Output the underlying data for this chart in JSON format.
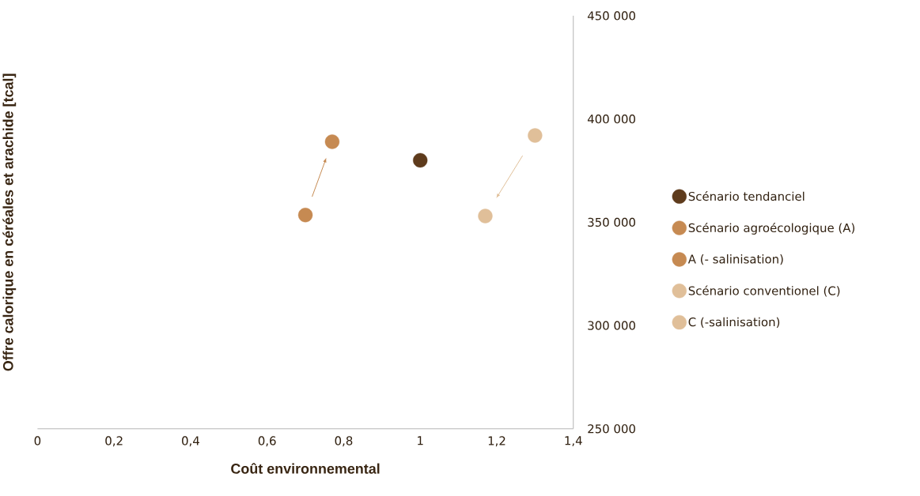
{
  "chart_data": {
    "type": "scatter",
    "xlabel": "Coût environnemental",
    "ylabel": "Offre calorique en céréales et arachide [tcal]",
    "xlim": [
      0,
      1.4
    ],
    "xticks": [
      0,
      {
        "value": 0.2,
        "label": "0,2"
      },
      {
        "value": 0.4,
        "label": "0,4"
      },
      {
        "value": 0.6,
        "label": "0,6"
      },
      {
        "value": 0.8,
        "label": "0,8"
      },
      1,
      {
        "value": 1.2,
        "label": "1,2"
      },
      {
        "value": 1.4,
        "label": "1,4"
      }
    ],
    "ylim": [
      250000,
      450000
    ],
    "yticks": [
      {
        "value": 250000,
        "label": "250 000"
      },
      {
        "value": 300000,
        "label": "300 000"
      },
      {
        "value": 350000,
        "label": "350 000"
      },
      {
        "value": 400000,
        "label": "400 000"
      },
      {
        "value": 450000,
        "label": "450 000"
      }
    ],
    "marker": "circle",
    "legend": "right",
    "grid": false,
    "series": [
      {
        "name": "Scénario tendanciel",
        "color": "#5e3b1c",
        "x": [
          1.0
        ],
        "values": [
          380000
        ]
      },
      {
        "name": "Scénario agroécologique (A)",
        "color": "#c68a52",
        "x": [
          0.77
        ],
        "values": [
          389000
        ]
      },
      {
        "name": "A (- salinisation)",
        "color": "#c68a52",
        "x": [
          0.7
        ],
        "values": [
          353500
        ]
      },
      {
        "name": "Scénario conventionel (C)",
        "color": "#e0bf99",
        "x": [
          1.17
        ],
        "values": [
          353000
        ]
      },
      {
        "name": "C (-salinisation)",
        "color": "#e0bf99",
        "x": [
          1.3
        ],
        "values": [
          392000
        ]
      }
    ]
  }
}
